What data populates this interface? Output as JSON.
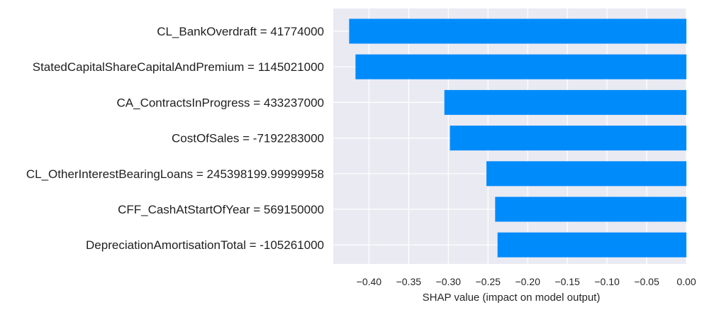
{
  "chart_data": {
    "type": "bar",
    "orientation": "horizontal",
    "categories": [
      "CL_BankOverdraft = 41774000",
      "StatedCapitalShareCapitalAndPremium = 1145021000",
      "CA_ContractsInProgress = 433237000",
      "CostOfSales = -7192283000",
      "CL_OtherInterestBearingLoans = 245398199.99999958",
      "CFF_CashAtStartOfYear = 569150000",
      "DepreciationAmortisationTotal = -105261000"
    ],
    "values": [
      -0.425,
      -0.417,
      -0.305,
      -0.298,
      -0.252,
      -0.241,
      -0.238
    ],
    "title": "",
    "xlabel": "SHAP value (impact on model output)",
    "ylabel": "",
    "xlim": [
      -0.445,
      0.0
    ],
    "xticks": [
      -0.4,
      -0.35,
      -0.3,
      -0.25,
      -0.2,
      -0.15,
      -0.1,
      -0.05,
      0.0
    ],
    "xtick_labels": [
      "−0.40",
      "−0.35",
      "−0.30",
      "−0.25",
      "−0.20",
      "−0.15",
      "−0.10",
      "−0.05",
      "0.00"
    ],
    "grid": true,
    "colors": {
      "bar": "#008bfb",
      "background": "#eaeaf2",
      "grid": "#ffffff"
    }
  }
}
